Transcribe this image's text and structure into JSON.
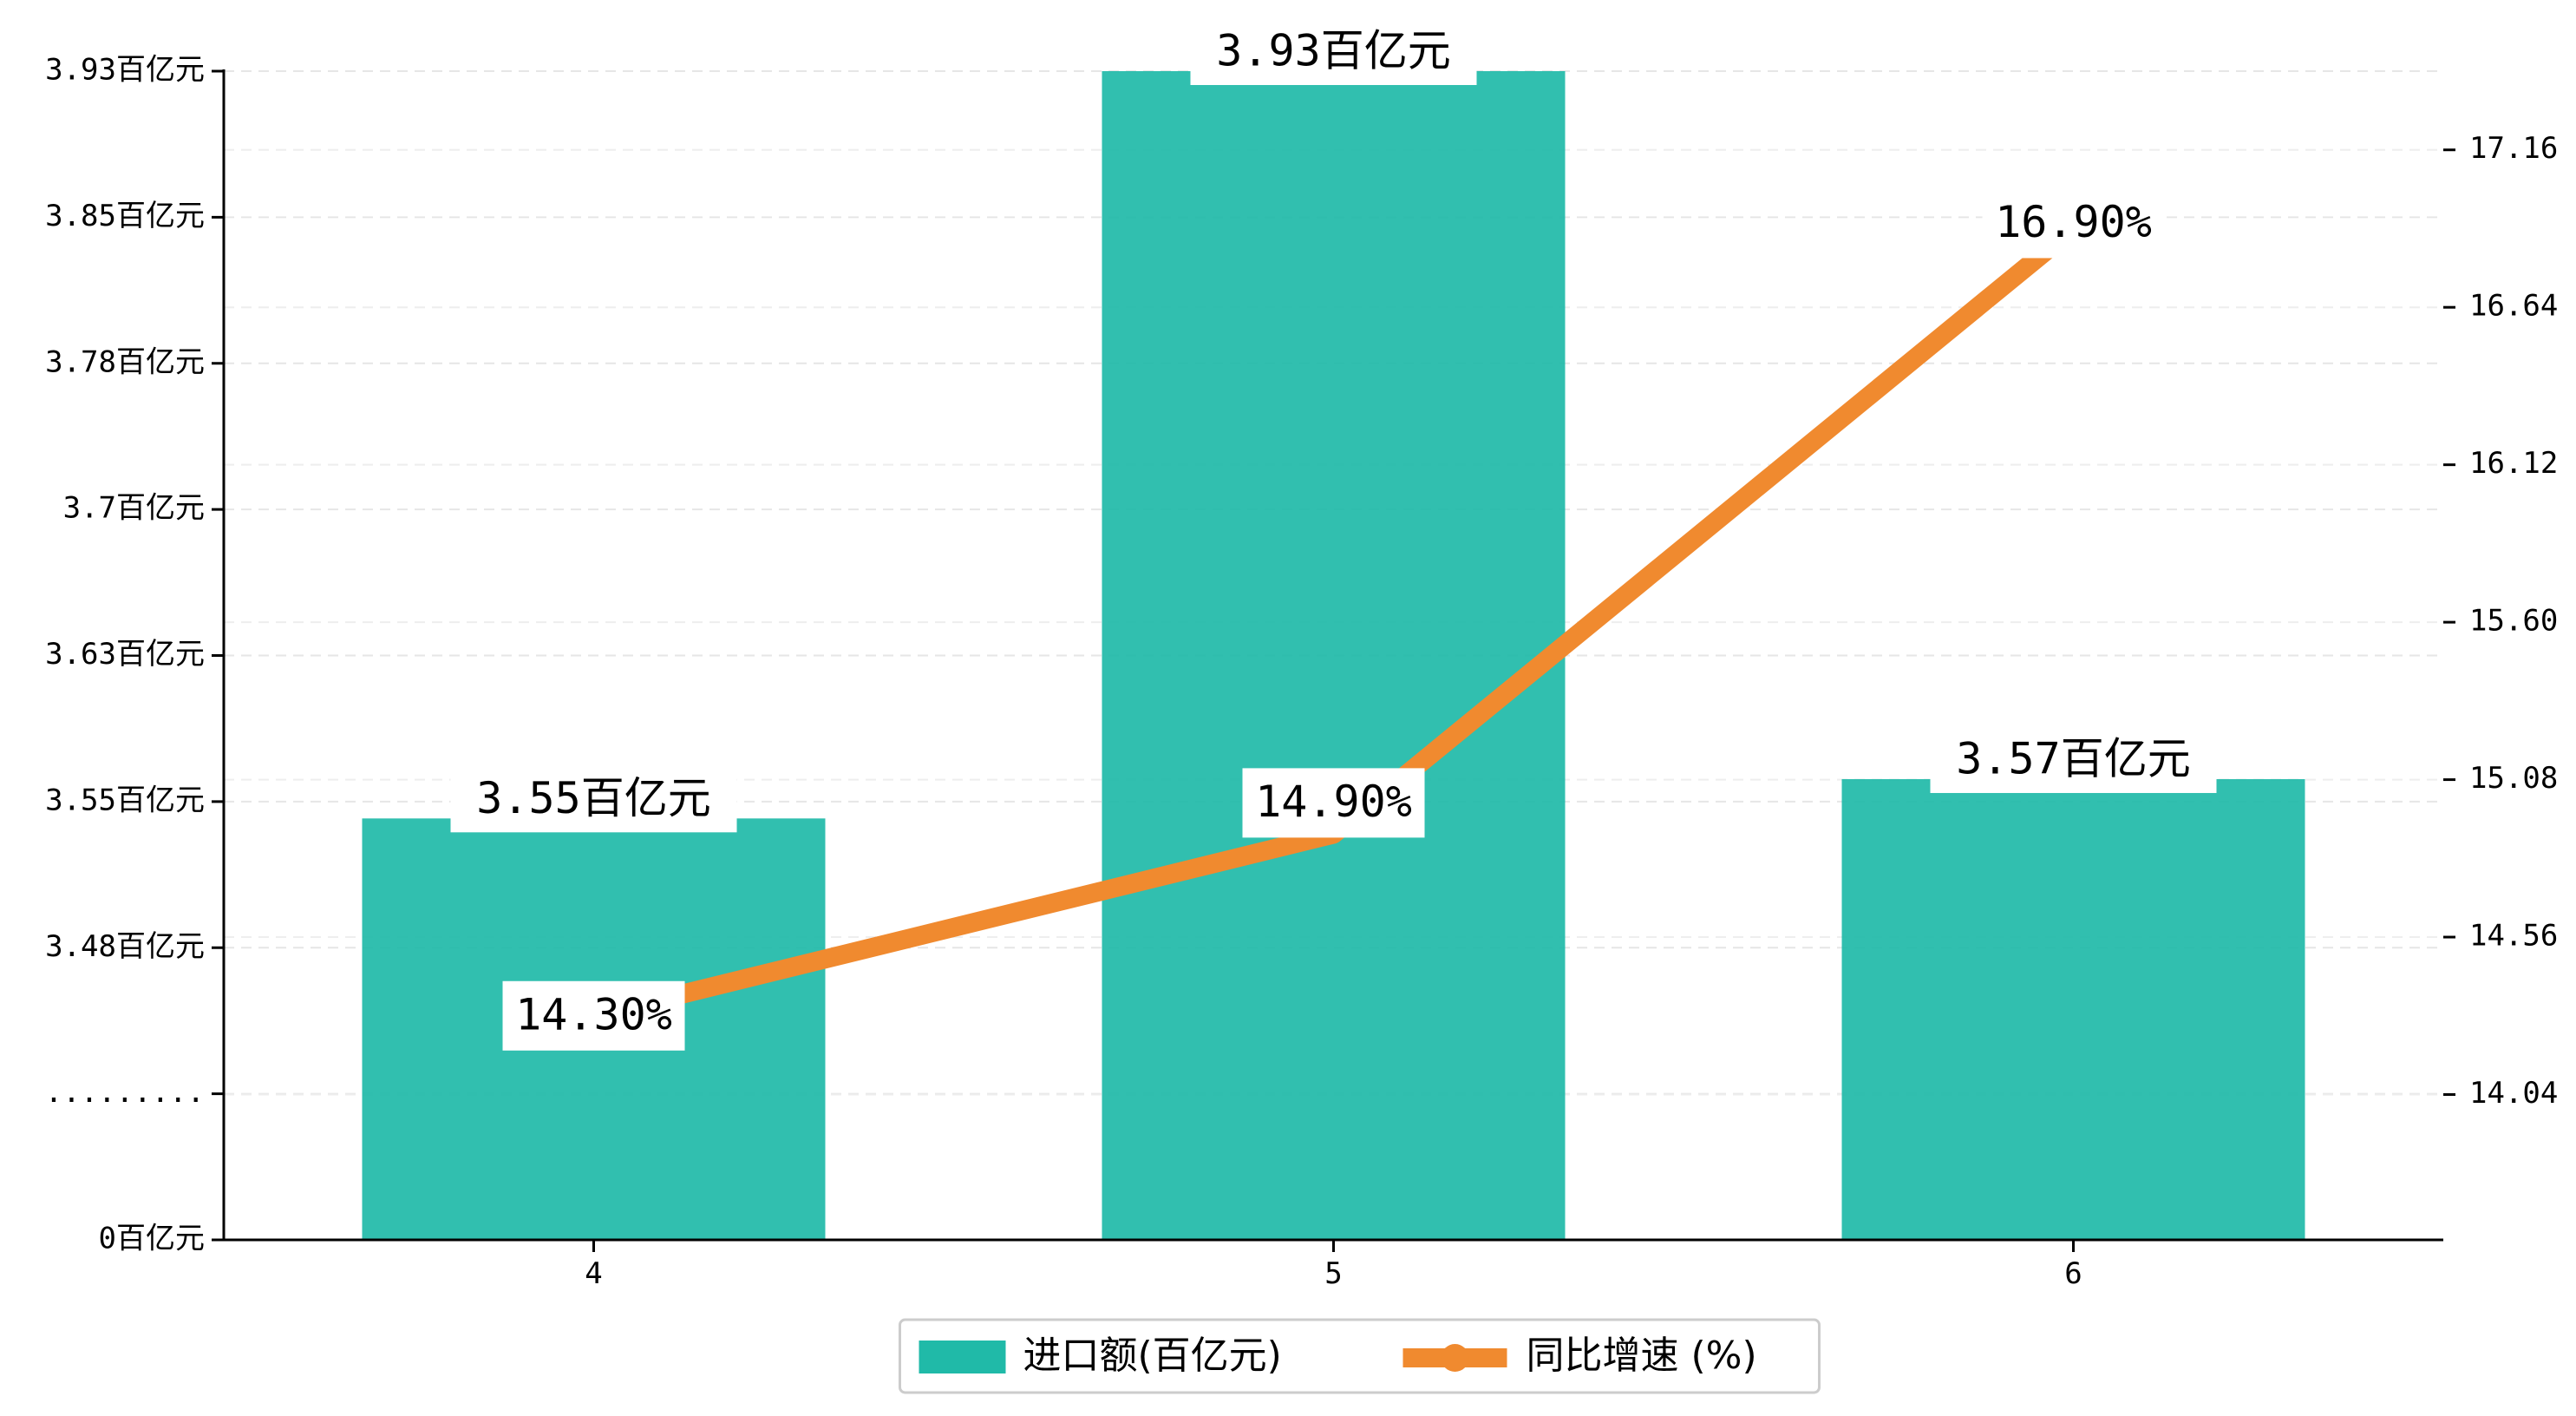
{
  "chart_data": {
    "type": "bar+line",
    "categories": [
      "4",
      "5",
      "6"
    ],
    "series": [
      {
        "name": "进口额(百亿元)",
        "type": "bar",
        "axis": "left",
        "values": [
          3.55,
          3.93,
          3.57
        ],
        "labels": [
          "3.55百亿元",
          "3.93百亿元",
          "3.57百亿元"
        ],
        "color": "#20BAA8"
      },
      {
        "name": "同比增速 (%)",
        "type": "line",
        "axis": "right",
        "values": [
          14.3,
          14.9,
          16.9
        ],
        "labels": [
          "14.30%",
          "14.90%",
          "16.90%"
        ],
        "color": "#F08A2F"
      }
    ],
    "y_left": {
      "broken_axis": true,
      "break_label": ".........",
      "ticks": [
        {
          "value": 0,
          "label": "0百亿元"
        },
        {
          "value": 3.48,
          "label": "3.48百亿元"
        },
        {
          "value": 3.55,
          "label": "3.55百亿元"
        },
        {
          "value": 3.63,
          "label": "3.63百亿元"
        },
        {
          "value": 3.7,
          "label": "3.7百亿元"
        },
        {
          "value": 3.78,
          "label": "3.78百亿元"
        },
        {
          "value": 3.85,
          "label": "3.85百亿元"
        },
        {
          "value": 3.93,
          "label": "3.93百亿元"
        }
      ]
    },
    "y_right": {
      "ticks": [
        "14.04",
        "14.56",
        "15.08",
        "15.60",
        "16.12",
        "16.64",
        "17.16"
      ]
    },
    "grid": "horizontal dashed",
    "legend_position": "bottom-center"
  }
}
